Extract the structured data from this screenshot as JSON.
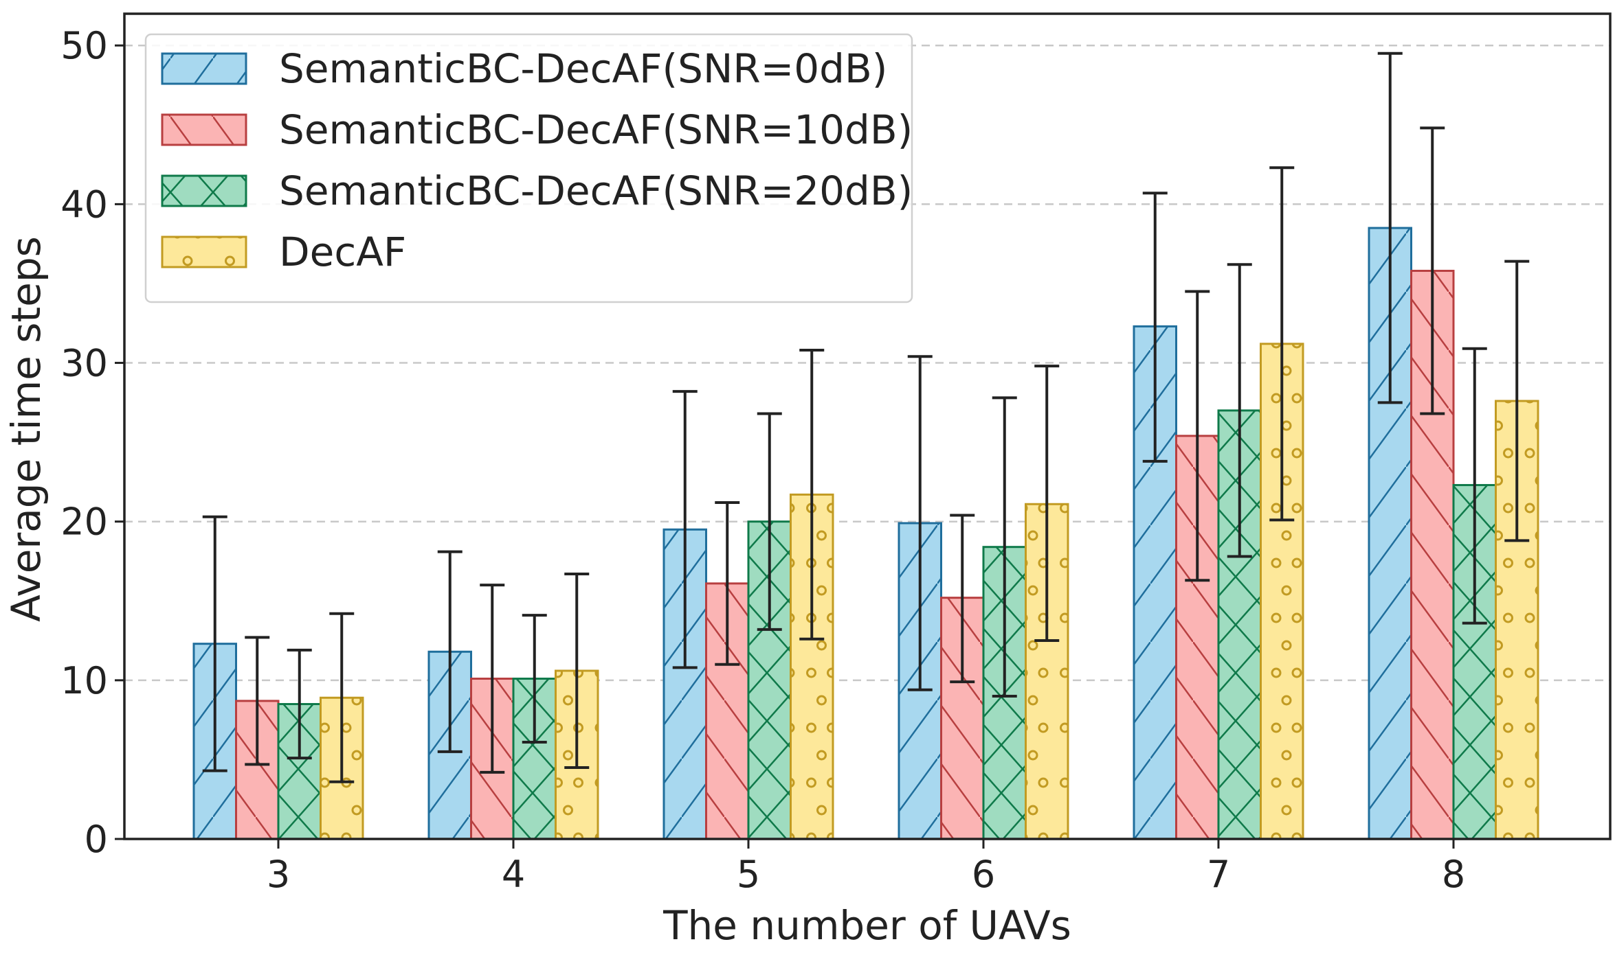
{
  "chart_data": {
    "type": "bar",
    "xlabel": "The number of UAVs",
    "ylabel": "Average time steps",
    "categories": [
      "3",
      "4",
      "5",
      "6",
      "7",
      "8"
    ],
    "ylim": [
      0,
      52
    ],
    "yticks": [
      0,
      10,
      20,
      30,
      40,
      50
    ],
    "grid": "horizontal dashed",
    "legend_position": "top-left",
    "series": [
      {
        "name": "SemanticBC-DecAF(SNR=0dB)",
        "values": [
          12.3,
          11.8,
          19.5,
          19.9,
          32.3,
          38.5
        ],
        "error_low": [
          4.3,
          5.5,
          10.8,
          9.4,
          23.8,
          27.5
        ],
        "error_high": [
          20.3,
          18.1,
          28.2,
          30.4,
          40.7,
          49.5
        ],
        "fill": "#a8d8ef",
        "edge": "#1f6e9c",
        "hatch": "diagonal-forward"
      },
      {
        "name": "SemanticBC-DecAF(SNR=10dB)",
        "values": [
          8.7,
          10.1,
          16.1,
          15.2,
          25.4,
          35.8
        ],
        "error_low": [
          4.7,
          4.2,
          11.0,
          9.9,
          16.3,
          26.8
        ],
        "error_high": [
          12.7,
          16.0,
          21.2,
          20.4,
          34.5,
          44.8
        ],
        "fill": "#fbb4b4",
        "edge": "#b83f40",
        "hatch": "diagonal-backward"
      },
      {
        "name": "SemanticBC-DecAF(SNR=20dB)",
        "values": [
          8.5,
          10.1,
          20.0,
          18.4,
          27.0,
          22.3
        ],
        "error_low": [
          5.1,
          6.1,
          13.2,
          9.0,
          17.8,
          13.6
        ],
        "error_high": [
          11.9,
          14.1,
          26.8,
          27.8,
          36.2,
          30.9
        ],
        "fill": "#9fdcc0",
        "edge": "#0f7a4a",
        "hatch": "cross"
      },
      {
        "name": "DecAF",
        "values": [
          8.9,
          10.6,
          21.7,
          21.1,
          31.2,
          27.6
        ],
        "error_low": [
          3.6,
          4.5,
          12.6,
          12.5,
          20.1,
          18.8
        ],
        "error_high": [
          14.2,
          16.7,
          30.8,
          29.8,
          42.3,
          36.4
        ],
        "fill": "#fde89a",
        "edge": "#c29b22",
        "hatch": "circles"
      }
    ]
  }
}
